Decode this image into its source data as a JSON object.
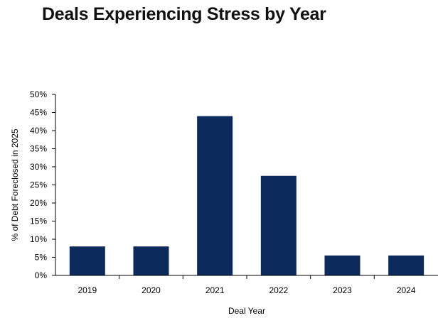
{
  "chart_data": {
    "type": "bar",
    "title": "Deals Experiencing Stress by Year",
    "xlabel": "Deal Year",
    "ylabel": "% of Debt Foreclosed in 2025",
    "categories": [
      "2019",
      "2020",
      "2021",
      "2022",
      "2023",
      "2024"
    ],
    "values": [
      8,
      8,
      44,
      27.5,
      5.5,
      5.5
    ],
    "ylim": [
      0,
      50
    ],
    "yticks": [
      "0%",
      "5%",
      "10%",
      "15%",
      "20%",
      "25%",
      "30%",
      "35%",
      "40%",
      "45%",
      "50%"
    ],
    "y_tick_values": [
      0,
      5,
      10,
      15,
      20,
      25,
      30,
      35,
      40,
      45,
      50
    ],
    "grid": false,
    "legend": "none",
    "bar_color": "#0d2a5c"
  }
}
